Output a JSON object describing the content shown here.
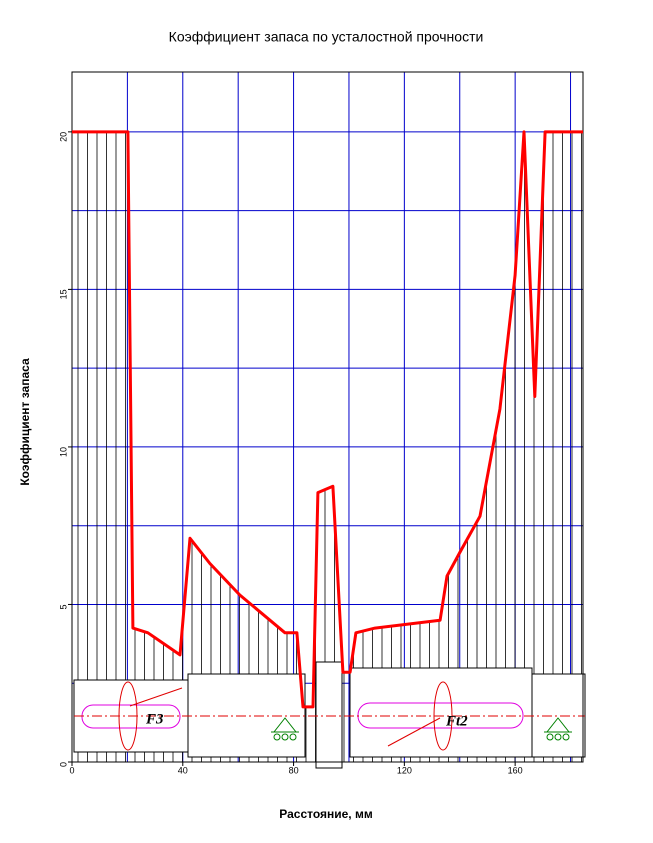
{
  "chart_data": {
    "type": "line",
    "title": "Коэффициент запаса по усталостной прочности",
    "x_label": "Расстояние, мм",
    "y_label": "Коэффициент запаса",
    "x": [
      0,
      20.2,
      22,
      27.4,
      39,
      42.6,
      49.8,
      60.6,
      76.9,
      81.2,
      83.4,
      87,
      88.8,
      94.2,
      97.8,
      100.4,
      102.5,
      109.4,
      132.9,
      135.4,
      140,
      147.3,
      154.5,
      160,
      163.2,
      167.1,
      170.8,
      184.5
    ],
    "values": [
      20,
      20,
      4.25,
      4.1,
      3.4,
      7.1,
      6.3,
      5.3,
      4.1,
      4.1,
      1.75,
      1.75,
      8.55,
      8.75,
      2.85,
      2.85,
      4.1,
      4.25,
      4.5,
      5.9,
      6.65,
      7.8,
      11.2,
      15.45,
      20,
      11.6,
      20,
      20
    ],
    "color": "#ff0000",
    "grid_color": "#0000cc",
    "xlim": [
      0,
      184.5
    ],
    "ylim": [
      0,
      21.9
    ],
    "xticks": [
      0,
      40,
      80,
      120,
      160
    ],
    "yticks": [
      0,
      5,
      10,
      15,
      20
    ],
    "x_grid": [
      20,
      40,
      60,
      80,
      100,
      120,
      140,
      160,
      180
    ],
    "y_grid": [
      2.5,
      5,
      7.5,
      10,
      12.5,
      15,
      17.5,
      20
    ],
    "annotations": [
      "F3",
      "Ft2"
    ]
  }
}
